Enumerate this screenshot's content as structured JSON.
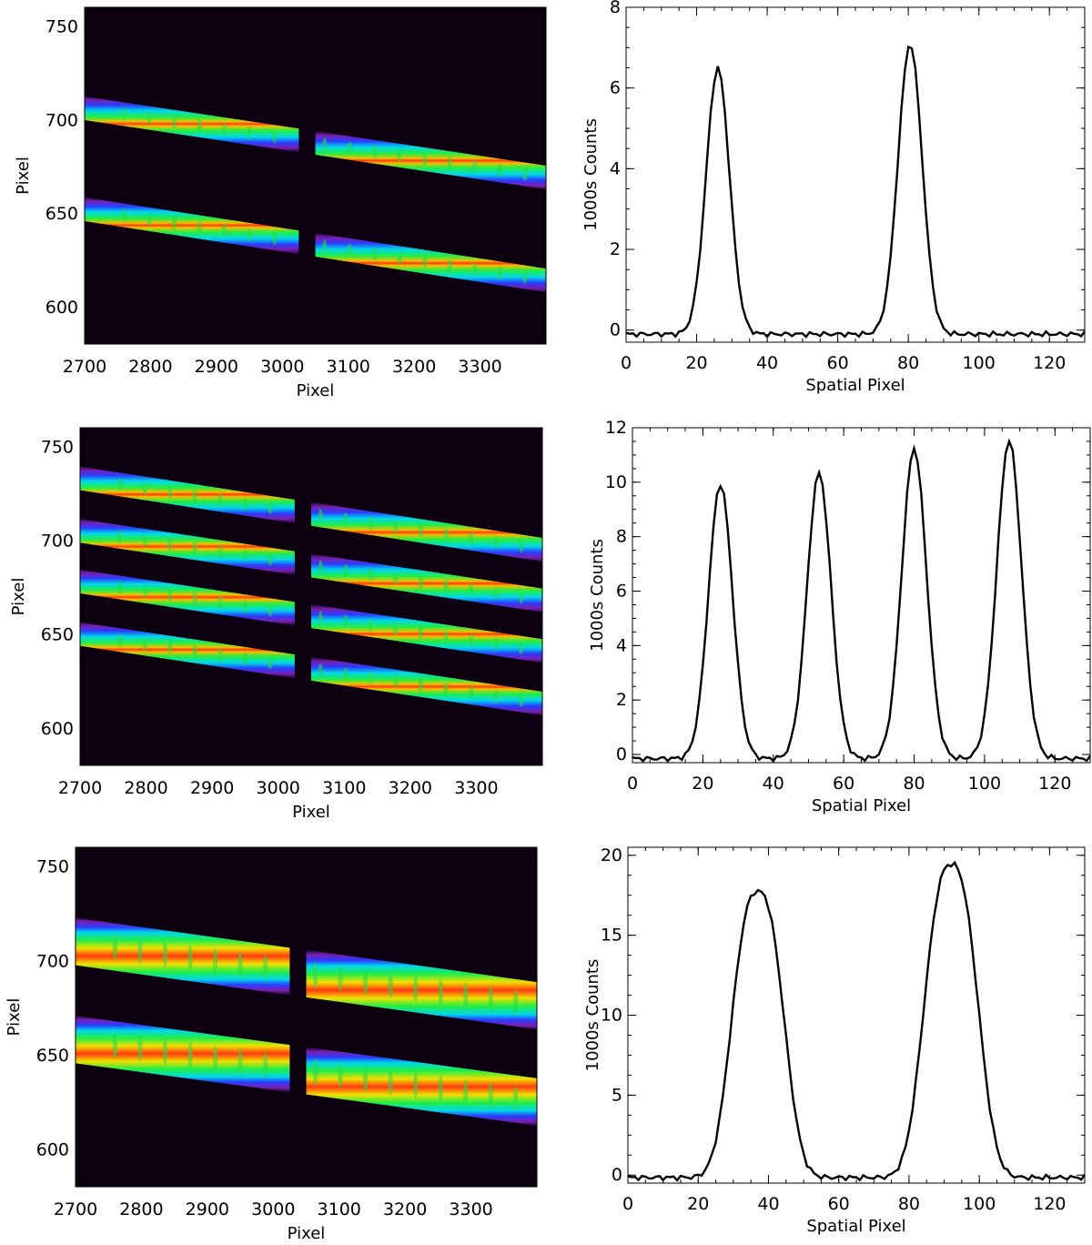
{
  "image_panels": [
    {
      "xlabel": "Pixel",
      "ylabel": "Pixel",
      "xticks": [
        "2700",
        "2800",
        "2900",
        "3000",
        "3100",
        "3200",
        "3300"
      ],
      "yticks": [
        "600",
        "650",
        "700",
        "750"
      ],
      "xlim": [
        2700,
        3400
      ],
      "ylim": [
        580,
        760
      ],
      "traces": [
        {
          "start": 706,
          "end": 669
        },
        {
          "start": 652,
          "end": 614
        }
      ],
      "thickness": 13,
      "brightness": 0.9
    },
    {
      "xlabel": "Pixel",
      "ylabel": "Pixel",
      "xticks": [
        "2700",
        "2800",
        "2900",
        "3000",
        "3100",
        "3200",
        "3300"
      ],
      "yticks": [
        "600",
        "650",
        "700",
        "750"
      ],
      "xlim": [
        2700,
        3400
      ],
      "ylim": [
        580,
        760
      ],
      "traces": [
        {
          "start": 733,
          "end": 695
        },
        {
          "start": 705,
          "end": 668
        },
        {
          "start": 678,
          "end": 641
        },
        {
          "start": 650,
          "end": 613
        }
      ],
      "thickness": 13,
      "brightness": 0.95
    },
    {
      "xlabel": "Pixel",
      "ylabel": "Pixel",
      "xticks": [
        "2700",
        "2800",
        "2900",
        "3000",
        "3100",
        "3200",
        "3300"
      ],
      "yticks": [
        "600",
        "650",
        "700",
        "750"
      ],
      "xlim": [
        2700,
        3400
      ],
      "ylim": [
        580,
        760
      ],
      "traces": [
        {
          "start": 710,
          "end": 676
        },
        {
          "start": 658,
          "end": 625
        }
      ],
      "thickness": 26,
      "brightness": 1.0
    }
  ],
  "chart_data": [
    {
      "type": "line",
      "xlabel": "Spatial Pixel",
      "ylabel": "1000s Counts",
      "xlim": [
        0,
        130
      ],
      "ylim": [
        -0.3,
        8
      ],
      "xticks": [
        "0",
        "20",
        "40",
        "60",
        "80",
        "100",
        "120"
      ],
      "yticks": [
        "0",
        "2",
        "4",
        "6",
        "8"
      ],
      "peaks": [
        {
          "center": 26,
          "height": 6.6,
          "width": 3.3
        },
        {
          "center": 80.5,
          "height": 7.2,
          "width": 3.4
        }
      ],
      "baseline": -0.1
    },
    {
      "type": "line",
      "xlabel": "Spatial Pixel",
      "ylabel": "1000s Counts",
      "xlim": [
        0,
        130
      ],
      "ylim": [
        -0.3,
        12
      ],
      "xticks": [
        "0",
        "20",
        "40",
        "60",
        "80",
        "100",
        "120"
      ],
      "yticks": [
        "0",
        "2",
        "4",
        "6",
        "8",
        "10",
        "12"
      ],
      "peaks": [
        {
          "center": 25,
          "height": 10.1,
          "width": 3.4
        },
        {
          "center": 53,
          "height": 10.5,
          "width": 3.4
        },
        {
          "center": 80,
          "height": 11.4,
          "width": 3.5
        },
        {
          "center": 107,
          "height": 11.7,
          "width": 3.5
        }
      ],
      "baseline": -0.15
    },
    {
      "type": "line",
      "xlabel": "Spatial Pixel",
      "ylabel": "1000s Counts",
      "xlim": [
        0,
        130
      ],
      "ylim": [
        -0.5,
        20.5
      ],
      "xticks": [
        "0",
        "20",
        "40",
        "60",
        "80",
        "100",
        "120"
      ],
      "yticks": [
        "0",
        "5",
        "10",
        "15",
        "20"
      ],
      "peaks": [
        {
          "center": 37,
          "height": 17.9,
          "width": 7.0
        },
        {
          "center": 92,
          "height": 19.6,
          "width": 7.2
        }
      ],
      "baseline": -0.15
    }
  ]
}
